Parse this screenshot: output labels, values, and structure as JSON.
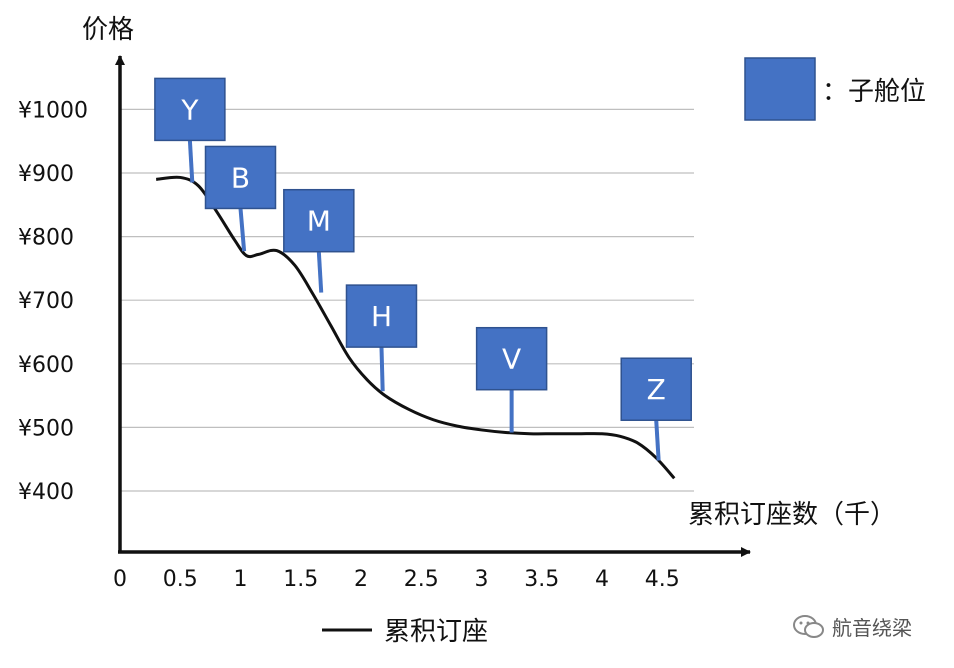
{
  "chart_data": {
    "type": "line",
    "ylabel": "价格",
    "xlabel": "累积订座数（千）",
    "x_ticks": [
      "0",
      "0.5",
      "1",
      "1.5",
      "2",
      "2.5",
      "3",
      "3.5",
      "4",
      "4.5"
    ],
    "y_ticks": [
      "¥400",
      "¥500",
      "¥600",
      "¥700",
      "¥800",
      "¥900",
      "¥1000"
    ],
    "xlim": [
      0,
      4.7
    ],
    "ylim": [
      350,
      1060
    ],
    "grid": true,
    "series": [
      {
        "name": "累积订座",
        "x": [
          0.3,
          0.5,
          0.65,
          0.8,
          0.95,
          1.05,
          1.15,
          1.3,
          1.45,
          1.6,
          1.75,
          1.9,
          2.05,
          2.2,
          2.4,
          2.6,
          2.8,
          3.0,
          3.2,
          3.4,
          3.6,
          3.8,
          4.0,
          4.15,
          4.3,
          4.45,
          4.6
        ],
        "y": [
          890,
          893,
          880,
          840,
          795,
          770,
          772,
          778,
          755,
          710,
          660,
          610,
          575,
          550,
          528,
          512,
          502,
          496,
          492,
          490,
          490,
          490,
          490,
          486,
          475,
          452,
          420
        ]
      }
    ],
    "legend": {
      "position": "bottom",
      "entry": "累积订座"
    },
    "fare_classes": [
      {
        "label": "Y",
        "x": 0.6,
        "y": 885,
        "box_x": 0.58,
        "box_y": 1000
      },
      {
        "label": "B",
        "x": 1.03,
        "y": 777,
        "box_x": 1.0,
        "box_y": 893
      },
      {
        "label": "M",
        "x": 1.67,
        "y": 712,
        "box_x": 1.65,
        "box_y": 825
      },
      {
        "label": "H",
        "x": 2.18,
        "y": 557,
        "box_x": 2.17,
        "box_y": 675
      },
      {
        "label": "V",
        "x": 3.25,
        "y": 492,
        "box_x": 3.25,
        "box_y": 608
      },
      {
        "label": "Z",
        "x": 4.47,
        "y": 448,
        "box_x": 4.45,
        "box_y": 560
      }
    ],
    "class_legend": {
      "label": "：子舱位",
      "position": "top-right",
      "color": "#4472c4"
    }
  },
  "watermark": {
    "text": "航音绕梁"
  }
}
